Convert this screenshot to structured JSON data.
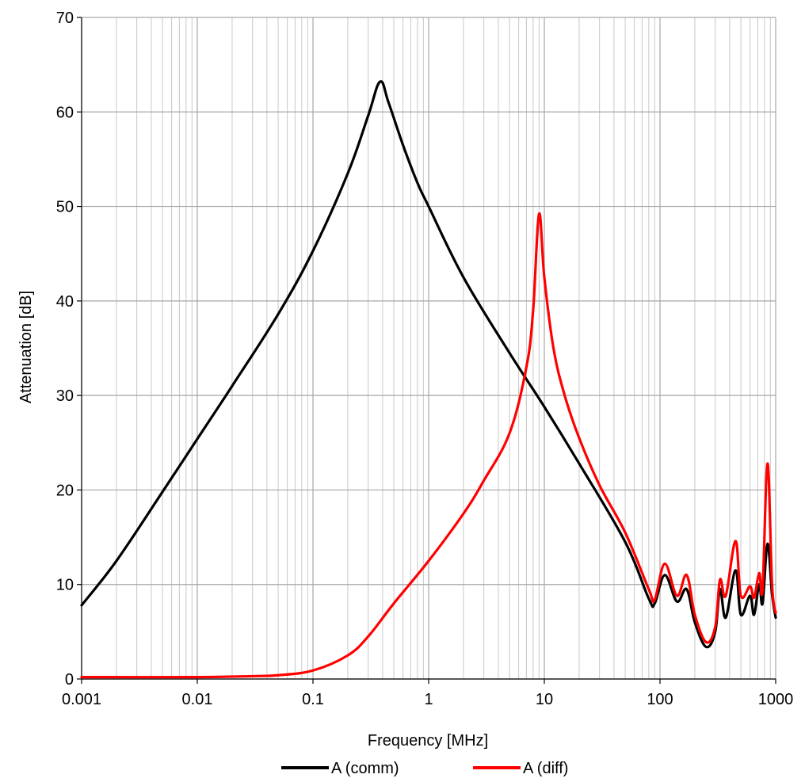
{
  "chart_data": {
    "type": "line",
    "title": "",
    "xlabel": "Frequency [MHz]",
    "ylabel": "Attenuation [dB]",
    "xscale": "log",
    "xlim": [
      0.001,
      1000
    ],
    "ylim": [
      0,
      70
    ],
    "xticks": [
      0.001,
      0.01,
      0.1,
      1,
      10,
      100,
      1000
    ],
    "xtick_labels": [
      "0.001",
      "0.01",
      "0.1",
      "1",
      "10",
      "100",
      "1000"
    ],
    "yticks": [
      0,
      10,
      20,
      30,
      40,
      50,
      60,
      70
    ],
    "ytick_labels": [
      "0",
      "10",
      "20",
      "30",
      "40",
      "50",
      "60",
      "70"
    ],
    "grid": true,
    "legend_position": "bottom",
    "series": [
      {
        "name": "A (comm)",
        "color": "#000000",
        "points": [
          [
            0.001,
            7.8
          ],
          [
            0.002,
            12.5
          ],
          [
            0.005,
            19.8
          ],
          [
            0.01,
            25.4
          ],
          [
            0.02,
            31.0
          ],
          [
            0.05,
            38.6
          ],
          [
            0.1,
            45.3
          ],
          [
            0.2,
            53.5
          ],
          [
            0.3,
            59.6
          ],
          [
            0.38,
            63.2
          ],
          [
            0.45,
            61.0
          ],
          [
            0.6,
            56.5
          ],
          [
            0.8,
            52.5
          ],
          [
            1,
            50.0
          ],
          [
            2,
            42.5
          ],
          [
            5,
            34.5
          ],
          [
            10,
            28.8
          ],
          [
            20,
            22.8
          ],
          [
            50,
            14.5
          ],
          [
            80,
            8.5
          ],
          [
            90,
            8.0
          ],
          [
            110,
            11.0
          ],
          [
            140,
            8.2
          ],
          [
            170,
            9.5
          ],
          [
            200,
            6.0
          ],
          [
            250,
            3.4
          ],
          [
            300,
            5.0
          ],
          [
            330,
            9.5
          ],
          [
            370,
            6.5
          ],
          [
            450,
            11.5
          ],
          [
            500,
            6.8
          ],
          [
            600,
            8.8
          ],
          [
            650,
            6.8
          ],
          [
            720,
            10.0
          ],
          [
            770,
            8.0
          ],
          [
            850,
            14.3
          ],
          [
            930,
            9.0
          ],
          [
            1000,
            6.5
          ]
        ]
      },
      {
        "name": "A (diff)",
        "color": "#ff0000",
        "points": [
          [
            0.001,
            0.2
          ],
          [
            0.01,
            0.2
          ],
          [
            0.03,
            0.3
          ],
          [
            0.05,
            0.4
          ],
          [
            0.1,
            0.9
          ],
          [
            0.2,
            2.5
          ],
          [
            0.3,
            4.5
          ],
          [
            0.5,
            8.0
          ],
          [
            1,
            12.5
          ],
          [
            2,
            17.5
          ],
          [
            3,
            21.0
          ],
          [
            5,
            26.0
          ],
          [
            7,
            33.0
          ],
          [
            8,
            39.0
          ],
          [
            9,
            49.2
          ],
          [
            10,
            42.5
          ],
          [
            12,
            35.0
          ],
          [
            15,
            30.0
          ],
          [
            20,
            25.5
          ],
          [
            30,
            20.5
          ],
          [
            50,
            15.5
          ],
          [
            80,
            9.5
          ],
          [
            90,
            8.4
          ],
          [
            110,
            12.2
          ],
          [
            140,
            8.8
          ],
          [
            170,
            11.0
          ],
          [
            200,
            6.8
          ],
          [
            250,
            3.9
          ],
          [
            300,
            5.5
          ],
          [
            330,
            10.5
          ],
          [
            370,
            8.8
          ],
          [
            450,
            14.6
          ],
          [
            500,
            8.8
          ],
          [
            600,
            9.8
          ],
          [
            650,
            8.6
          ],
          [
            720,
            11.2
          ],
          [
            770,
            9.5
          ],
          [
            850,
            22.8
          ],
          [
            930,
            10.0
          ],
          [
            1000,
            7.0
          ]
        ]
      }
    ]
  }
}
